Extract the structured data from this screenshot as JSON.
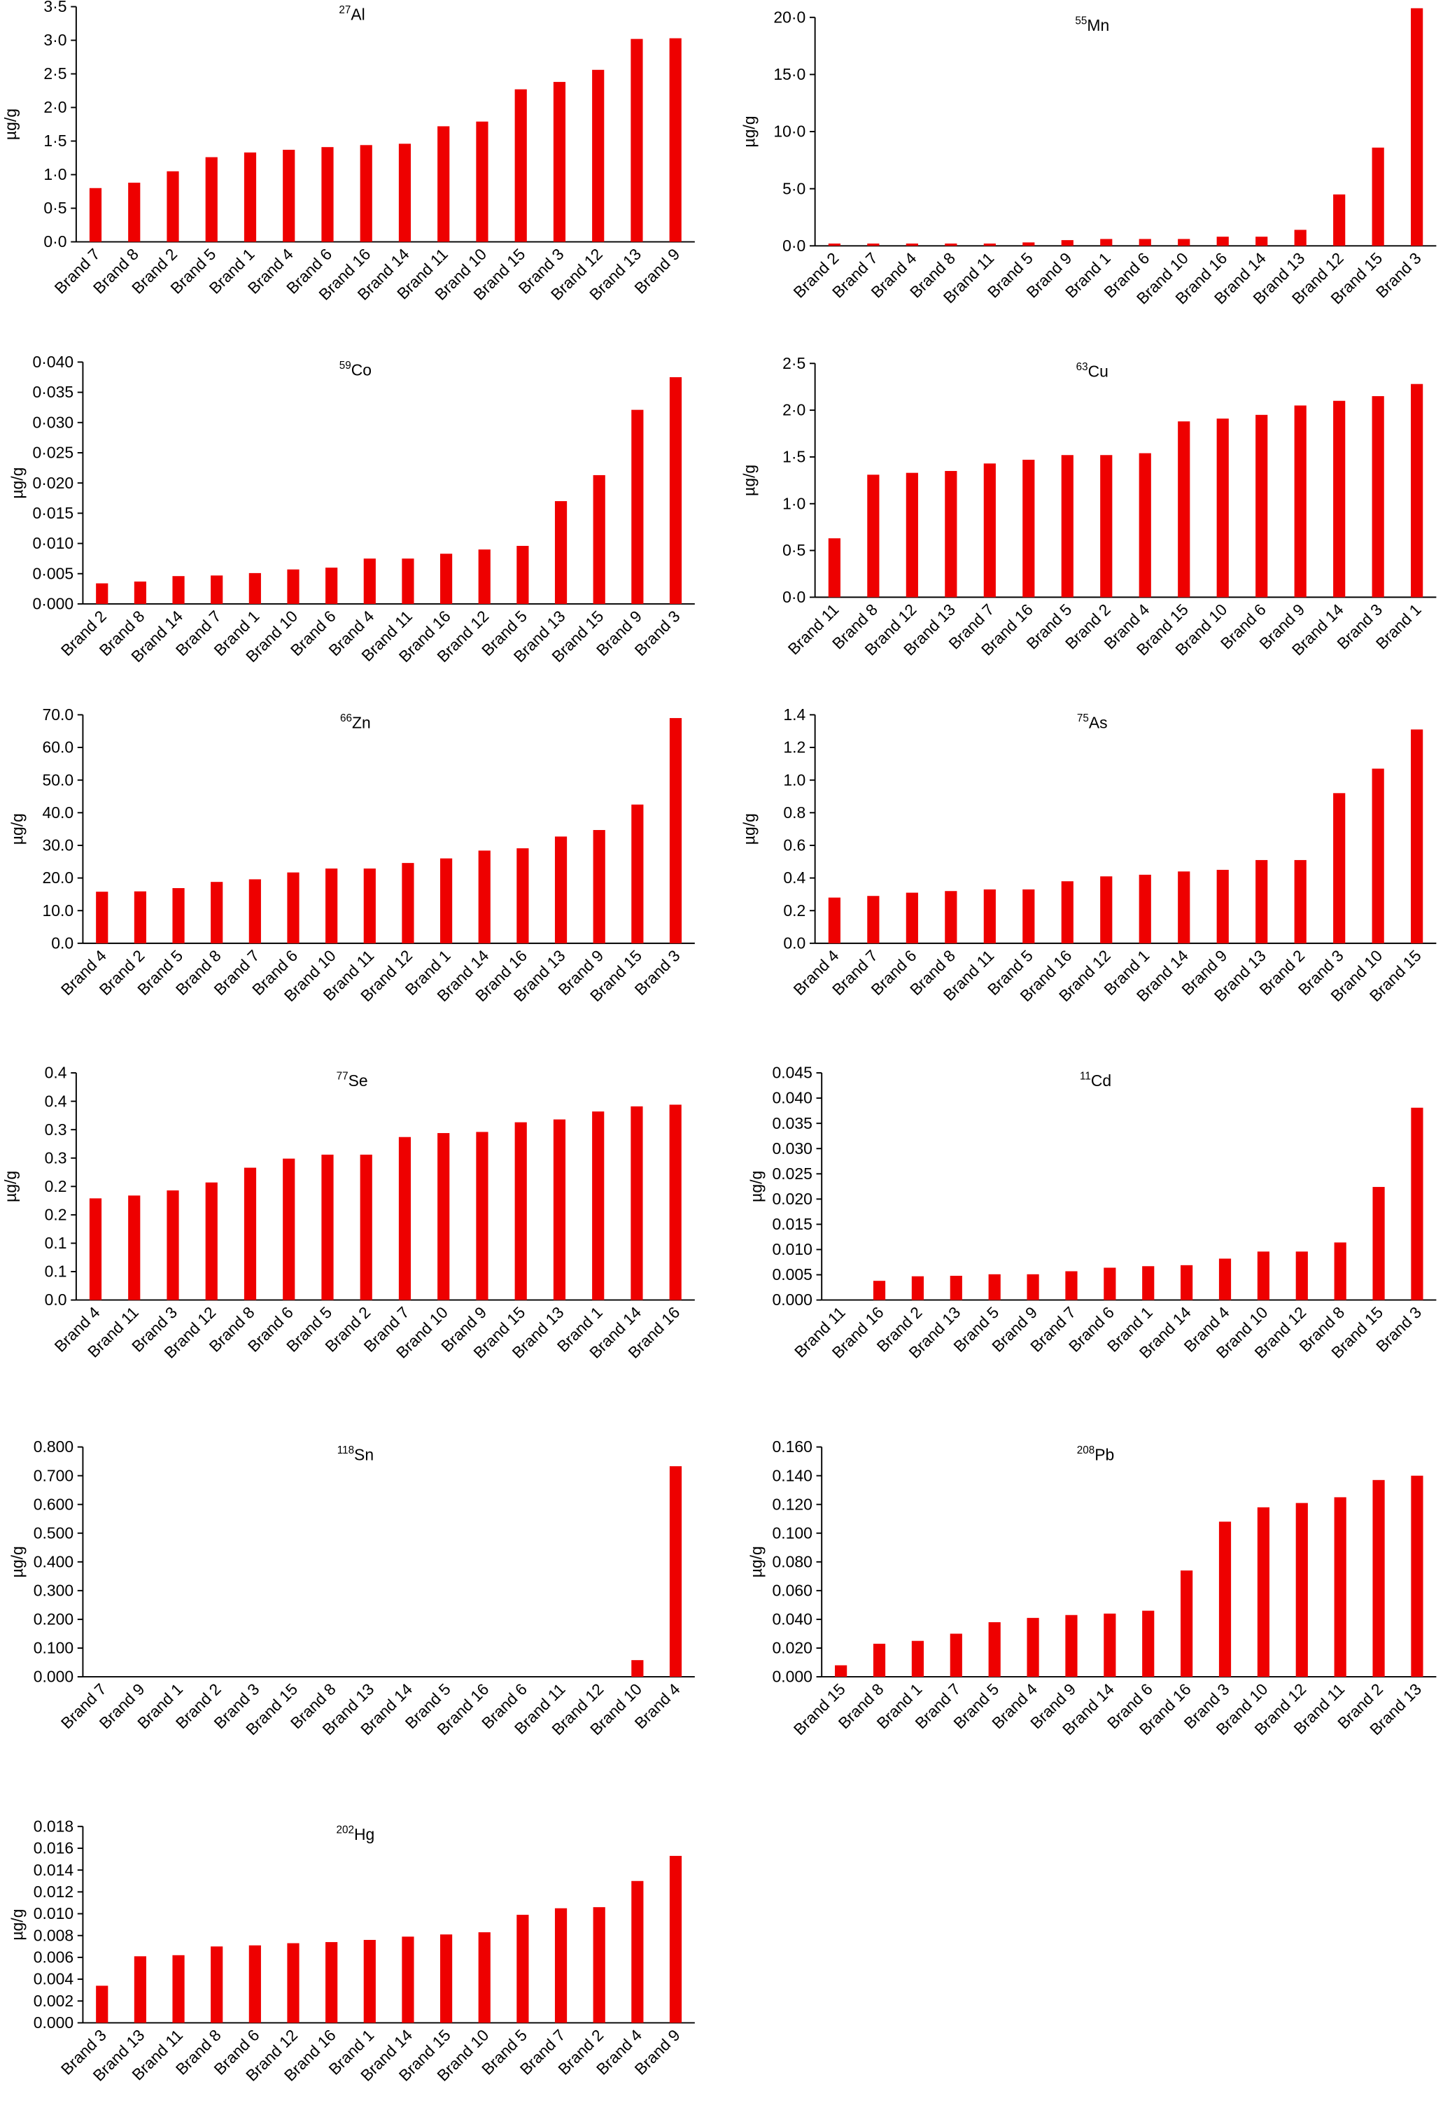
{
  "chart_data": [
    {
      "type": "bar",
      "title_mass": "27",
      "title": "Al",
      "ylabel": "µg/g",
      "color": "#ee0000",
      "categories": [
        "Brand 7",
        "Brand 8",
        "Brand 2",
        "Brand 5",
        "Brand 1",
        "Brand 4",
        "Brand 6",
        "Brand 16",
        "Brand 14",
        "Brand 11",
        "Brand 10",
        "Brand 15",
        "Brand 3",
        "Brand 12",
        "Brand 13",
        "Brand 9"
      ],
      "values": [
        0.8,
        0.88,
        1.05,
        1.26,
        1.33,
        1.37,
        1.41,
        1.44,
        1.46,
        1.72,
        1.79,
        2.27,
        2.38,
        2.56,
        3.02,
        3.03
      ],
      "ylim": [
        0,
        3.5
      ],
      "yticks": [
        {
          "value": 0,
          "label": "0·0"
        },
        {
          "value": 0.5,
          "label": "0·5"
        },
        {
          "value": 1,
          "label": "1·0"
        },
        {
          "value": 1.5,
          "label": "1·5"
        },
        {
          "value": 2,
          "label": "2·0"
        },
        {
          "value": 2.5,
          "label": "2·5"
        },
        {
          "value": 3,
          "label": "3·0"
        },
        {
          "value": 3.5,
          "label": "3·5"
        }
      ]
    },
    {
      "type": "bar",
      "title_mass": "55",
      "title": "Mn",
      "ylabel": "µg/g",
      "color": "#ee0000",
      "categories": [
        "Brand 2",
        "Brand 7",
        "Brand 4",
        "Brand 8",
        "Brand 11",
        "Brand 5",
        "Brand 9",
        "Brand 1",
        "Brand 6",
        "Brand 10",
        "Brand 16",
        "Brand 14",
        "Brand 13",
        "Brand 12",
        "Brand 15",
        "Brand 3"
      ],
      "values": [
        0.2,
        0.2,
        0.2,
        0.2,
        0.2,
        0.3,
        0.5,
        0.6,
        0.6,
        0.6,
        0.8,
        0.8,
        1.4,
        4.5,
        8.6,
        20.8
      ],
      "ylim": [
        0,
        20
      ],
      "yticks": [
        {
          "value": 0,
          "label": "0·0"
        },
        {
          "value": 5,
          "label": "5·0"
        },
        {
          "value": 10,
          "label": "10·0"
        },
        {
          "value": 15,
          "label": "15·0"
        },
        {
          "value": 20,
          "label": "20·0"
        }
      ]
    },
    {
      "type": "bar",
      "title_mass": "59",
      "title": "Co",
      "ylabel": "µg/g",
      "color": "#ee0000",
      "categories": [
        "Brand 2",
        "Brand 8",
        "Brand 14",
        "Brand 7",
        "Brand 1",
        "Brand 10",
        "Brand 6",
        "Brand 4",
        "Brand 11",
        "Brand 16",
        "Brand 12",
        "Brand 5",
        "Brand 13",
        "Brand 15",
        "Brand 9",
        "Brand 3"
      ],
      "values": [
        0.0034,
        0.0037,
        0.0046,
        0.0047,
        0.0051,
        0.0057,
        0.006,
        0.0075,
        0.0075,
        0.0083,
        0.009,
        0.0096,
        0.017,
        0.0213,
        0.0321,
        0.0375
      ],
      "ylim": [
        0,
        0.04
      ],
      "yticks": [
        {
          "value": 0,
          "label": "0·000"
        },
        {
          "value": 0.005,
          "label": "0·005"
        },
        {
          "value": 0.01,
          "label": "0·010"
        },
        {
          "value": 0.015,
          "label": "0·015"
        },
        {
          "value": 0.02,
          "label": "0·020"
        },
        {
          "value": 0.025,
          "label": "0·025"
        },
        {
          "value": 0.03,
          "label": "0·030"
        },
        {
          "value": 0.035,
          "label": "0·035"
        },
        {
          "value": 0.04,
          "label": "0·040"
        }
      ]
    },
    {
      "type": "bar",
      "title_mass": "63",
      "title": "Cu",
      "ylabel": "µg/g",
      "color": "#ee0000",
      "categories": [
        "Brand 11",
        "Brand 8",
        "Brand 12",
        "Brand 13",
        "Brand 7",
        "Brand 16",
        "Brand 5",
        "Brand 2",
        "Brand 4",
        "Brand 15",
        "Brand 10",
        "Brand 6",
        "Brand 9",
        "Brand 14",
        "Brand 3",
        "Brand 1"
      ],
      "values": [
        0.63,
        1.31,
        1.33,
        1.35,
        1.43,
        1.47,
        1.52,
        1.52,
        1.54,
        1.88,
        1.91,
        1.95,
        2.05,
        2.1,
        2.15,
        2.28
      ],
      "ylim": [
        0,
        2.5
      ],
      "yticks": [
        {
          "value": 0,
          "label": "0·0"
        },
        {
          "value": 0.5,
          "label": "0·5"
        },
        {
          "value": 1,
          "label": "1·0"
        },
        {
          "value": 1.5,
          "label": "1·5"
        },
        {
          "value": 2,
          "label": "2·0"
        },
        {
          "value": 2.5,
          "label": "2·5"
        }
      ]
    },
    {
      "type": "bar",
      "title_mass": "66",
      "title": "Zn",
      "ylabel": "µg/g",
      "color": "#ee0000",
      "categories": [
        "Brand 4",
        "Brand 2",
        "Brand 5",
        "Brand 8",
        "Brand 7",
        "Brand 6",
        "Brand 10",
        "Brand 11",
        "Brand 12",
        "Brand 1",
        "Brand 14",
        "Brand 16",
        "Brand 13",
        "Brand 9",
        "Brand 15",
        "Brand 3"
      ],
      "values": [
        15.8,
        15.9,
        16.9,
        18.8,
        19.6,
        21.7,
        22.9,
        22.9,
        24.6,
        26.0,
        28.4,
        29.1,
        32.7,
        34.7,
        42.5,
        69.0
      ],
      "ylim": [
        0,
        70
      ],
      "yticks": [
        {
          "value": 0,
          "label": "0.0"
        },
        {
          "value": 10,
          "label": "10.0"
        },
        {
          "value": 20,
          "label": "20.0"
        },
        {
          "value": 30,
          "label": "30.0"
        },
        {
          "value": 40,
          "label": "40.0"
        },
        {
          "value": 50,
          "label": "50.0"
        },
        {
          "value": 60,
          "label": "60.0"
        },
        {
          "value": 70,
          "label": "70.0"
        }
      ]
    },
    {
      "type": "bar",
      "title_mass": "75",
      "title": "As",
      "ylabel": "µg/g",
      "color": "#ee0000",
      "categories": [
        "Brand 4",
        "Brand 7",
        "Brand 6",
        "Brand 8",
        "Brand 11",
        "Brand 5",
        "Brand 16",
        "Brand 12",
        "Brand 1",
        "Brand 14",
        "Brand 9",
        "Brand 13",
        "Brand 2",
        "Brand 3",
        "Brand 10",
        "Brand 15"
      ],
      "values": [
        0.28,
        0.29,
        0.31,
        0.32,
        0.33,
        0.33,
        0.38,
        0.41,
        0.42,
        0.44,
        0.45,
        0.51,
        0.51,
        0.92,
        1.07,
        1.31
      ],
      "ylim": [
        0,
        1.4
      ],
      "yticks": [
        {
          "value": 0,
          "label": "0.0"
        },
        0.2,
        0.4,
        0.6,
        0.8,
        {
          "value": 1,
          "label": "1.0"
        },
        1.2,
        1.4
      ]
    },
    {
      "type": "bar",
      "title_mass": "77",
      "title": "Se",
      "ylabel": "µg/g",
      "color": "#ee0000",
      "categories": [
        "Brand 4",
        "Brand 11",
        "Brand 3",
        "Brand 12",
        "Brand 8",
        "Brand 6",
        "Brand 5",
        "Brand 2",
        "Brand 7",
        "Brand 10",
        "Brand 9",
        "Brand 15",
        "Brand 13",
        "Brand 1",
        "Brand 14",
        "Brand 16"
      ],
      "values": [
        0.179,
        0.184,
        0.193,
        0.207,
        0.233,
        0.249,
        0.256,
        0.256,
        0.287,
        0.294,
        0.296,
        0.313,
        0.318,
        0.332,
        0.341,
        0.344
      ],
      "ylim": [
        0,
        0.4
      ],
      "yticks": [
        {
          "value": 0,
          "label": "0.0"
        },
        {
          "value": 0.05,
          "label": "0.1"
        },
        0.1,
        {
          "value": 0.15,
          "label": "0.2"
        },
        0.2,
        {
          "value": 0.25,
          "label": "0.3"
        },
        0.3,
        {
          "value": 0.35,
          "label": "0.4"
        },
        0.4
      ]
    },
    {
      "type": "bar",
      "title_mass": "11",
      "title": "Cd",
      "ylabel": "µg/g",
      "color": "#ee0000",
      "categories": [
        "Brand 11",
        "Brand 16",
        "Brand 2",
        "Brand 13",
        "Brand 5",
        "Brand 9",
        "Brand 7",
        "Brand 6",
        "Brand 1",
        "Brand 14",
        "Brand 4",
        "Brand 10",
        "Brand 12",
        "Brand 8",
        "Brand 15",
        "Brand 3"
      ],
      "values": [
        0,
        0.0038,
        0.0047,
        0.0048,
        0.0051,
        0.0051,
        0.0057,
        0.0064,
        0.0067,
        0.0069,
        0.0082,
        0.0096,
        0.0096,
        0.0114,
        0.0224,
        0.0381
      ],
      "ylim": [
        0,
        0.045
      ],
      "yticks": [
        {
          "value": 0,
          "label": "0.000"
        },
        0.005,
        {
          "value": 0.01,
          "label": "0.010"
        },
        0.015,
        {
          "value": 0.02,
          "label": "0.020"
        },
        0.025,
        {
          "value": 0.03,
          "label": "0.030"
        },
        0.035,
        {
          "value": 0.04,
          "label": "0.040"
        },
        0.045
      ]
    },
    {
      "type": "bar",
      "title_mass": "118",
      "title": "Sn",
      "ylabel": "µg/g",
      "color": "#ee0000",
      "categories": [
        "Brand 7",
        "Brand 9",
        "Brand 1",
        "Brand 2",
        "Brand 3",
        "Brand 15",
        "Brand 8",
        "Brand 13",
        "Brand 14",
        "Brand 5",
        "Brand 16",
        "Brand 6",
        "Brand 11",
        "Brand 12",
        "Brand 10",
        "Brand 4"
      ],
      "values": [
        0,
        0,
        0,
        0,
        0,
        0,
        0,
        0,
        0,
        0,
        0,
        0,
        0,
        0,
        0.058,
        0.733
      ],
      "ylim": [
        0,
        0.8
      ],
      "yticks": [
        {
          "value": 0,
          "label": "0.000"
        },
        {
          "value": 0.1,
          "label": "0.100"
        },
        {
          "value": 0.2,
          "label": "0.200"
        },
        {
          "value": 0.3,
          "label": "0.300"
        },
        {
          "value": 0.4,
          "label": "0.400"
        },
        {
          "value": 0.5,
          "label": "0.500"
        },
        {
          "value": 0.6,
          "label": "0.600"
        },
        {
          "value": 0.7,
          "label": "0.700"
        },
        {
          "value": 0.8,
          "label": "0.800"
        }
      ]
    },
    {
      "type": "bar",
      "title_mass": "208",
      "title": "Pb",
      "ylabel": "µg/g",
      "color": "#ee0000",
      "categories": [
        "Brand 15",
        "Brand 8",
        "Brand 1",
        "Brand 7",
        "Brand 5",
        "Brand 4",
        "Brand 9",
        "Brand 14",
        "Brand 6",
        "Brand 16",
        "Brand 3",
        "Brand 10",
        "Brand 12",
        "Brand 11",
        "Brand 2",
        "Brand 13"
      ],
      "values": [
        0.008,
        0.023,
        0.025,
        0.03,
        0.038,
        0.041,
        0.043,
        0.044,
        0.046,
        0.074,
        0.108,
        0.118,
        0.121,
        0.125,
        0.137,
        0.14
      ],
      "ylim": [
        0,
        0.16
      ],
      "yticks": [
        {
          "value": 0,
          "label": "0.000"
        },
        {
          "value": 0.02,
          "label": "0.020"
        },
        {
          "value": 0.04,
          "label": "0.040"
        },
        {
          "value": 0.06,
          "label": "0.060"
        },
        {
          "value": 0.08,
          "label": "0.080"
        },
        {
          "value": 0.1,
          "label": "0.100"
        },
        {
          "value": 0.12,
          "label": "0.120"
        },
        {
          "value": 0.14,
          "label": "0.140"
        },
        {
          "value": 0.16,
          "label": "0.160"
        }
      ]
    },
    {
      "type": "bar",
      "title_mass": "202",
      "title": "Hg",
      "ylabel": "µg/g",
      "color": "#ee0000",
      "categories": [
        "Brand 3",
        "Brand 13",
        "Brand 11",
        "Brand 8",
        "Brand 6",
        "Brand 12",
        "Brand 16",
        "Brand 1",
        "Brand 14",
        "Brand 15",
        "Brand 10",
        "Brand 5",
        "Brand 7",
        "Brand 2",
        "Brand 4",
        "Brand 9"
      ],
      "values": [
        0.0034,
        0.0061,
        0.0062,
        0.007,
        0.0071,
        0.0073,
        0.0074,
        0.0076,
        0.0079,
        0.0081,
        0.0083,
        0.0099,
        0.0105,
        0.0106,
        0.013,
        0.0153
      ],
      "ylim": [
        0,
        0.018
      ],
      "yticks": [
        {
          "value": 0,
          "label": "0.000"
        },
        0.002,
        0.004,
        0.006,
        0.008,
        {
          "value": 0.01,
          "label": "0.010"
        },
        0.012,
        0.014,
        0.016,
        0.018
      ]
    }
  ]
}
